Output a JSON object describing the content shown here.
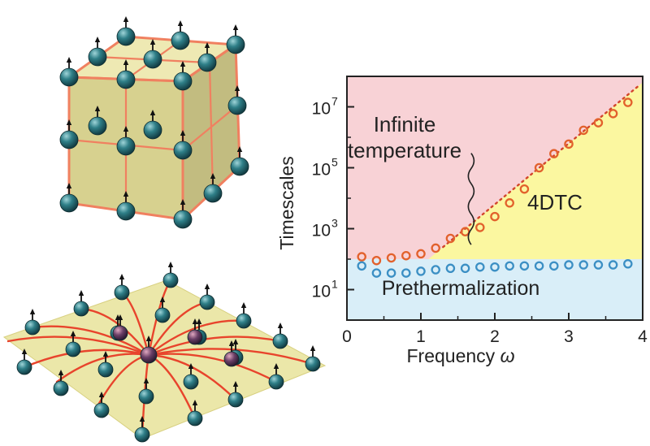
{
  "chart_data": {
    "type": "scatter",
    "xlabel": "Frequency",
    "xlabel_symbol": "ω",
    "ylabel": "Timescales",
    "xlim": [
      0,
      4
    ],
    "ylim_log10": [
      0,
      8
    ],
    "y_scale": "log",
    "xticks": [
      {
        "v": 0,
        "t": "0"
      },
      {
        "v": 1,
        "t": "1"
      },
      {
        "v": 2,
        "t": "2"
      },
      {
        "v": 3,
        "t": "3"
      },
      {
        "v": 4,
        "t": "4"
      }
    ],
    "yticks": [
      {
        "e": 1,
        "base": "10",
        "exp": "1"
      },
      {
        "e": 3,
        "base": "10",
        "exp": "3"
      },
      {
        "e": 5,
        "base": "10",
        "exp": "5"
      },
      {
        "e": 7,
        "base": "10",
        "exp": "7"
      }
    ],
    "regions": {
      "infinite": {
        "lines": [
          "Infinite",
          "temperature"
        ],
        "color": "#f8d2d6"
      },
      "dtc": {
        "label": "4DTC",
        "color": "#fbf7a0"
      },
      "preth": {
        "label": "Prethermalization",
        "color": "#d9eef8"
      }
    },
    "series": [
      {
        "color": "#e2612c",
        "x": [
          0.2,
          0.4,
          0.6,
          0.8,
          1.0,
          1.2,
          1.4,
          1.6,
          1.8,
          2.0,
          2.2,
          2.4,
          2.6,
          2.8,
          3.0,
          3.2,
          3.4,
          3.6,
          3.8
        ],
        "y": [
          120,
          90,
          110,
          130,
          150,
          230,
          480,
          800,
          1100,
          2500,
          7000,
          20000,
          100000,
          290000,
          600000,
          1700000,
          3000000,
          6000000,
          14000000
        ]
      },
      {
        "color": "#3b8fc4",
        "x": [
          0.2,
          0.4,
          0.6,
          0.8,
          1.0,
          1.2,
          1.4,
          1.6,
          1.8,
          2.0,
          2.2,
          2.4,
          2.6,
          2.8,
          3.0,
          3.2,
          3.4,
          3.6,
          3.8
        ],
        "y": [
          60,
          35,
          35,
          35,
          40,
          45,
          50,
          50,
          55,
          55,
          60,
          60,
          60,
          60,
          65,
          65,
          65,
          65,
          70
        ]
      }
    ],
    "fit_line": {
      "color": "#d2452c",
      "x": [
        1.3,
        3.95
      ],
      "y": [
        250,
        50000000
      ]
    }
  }
}
